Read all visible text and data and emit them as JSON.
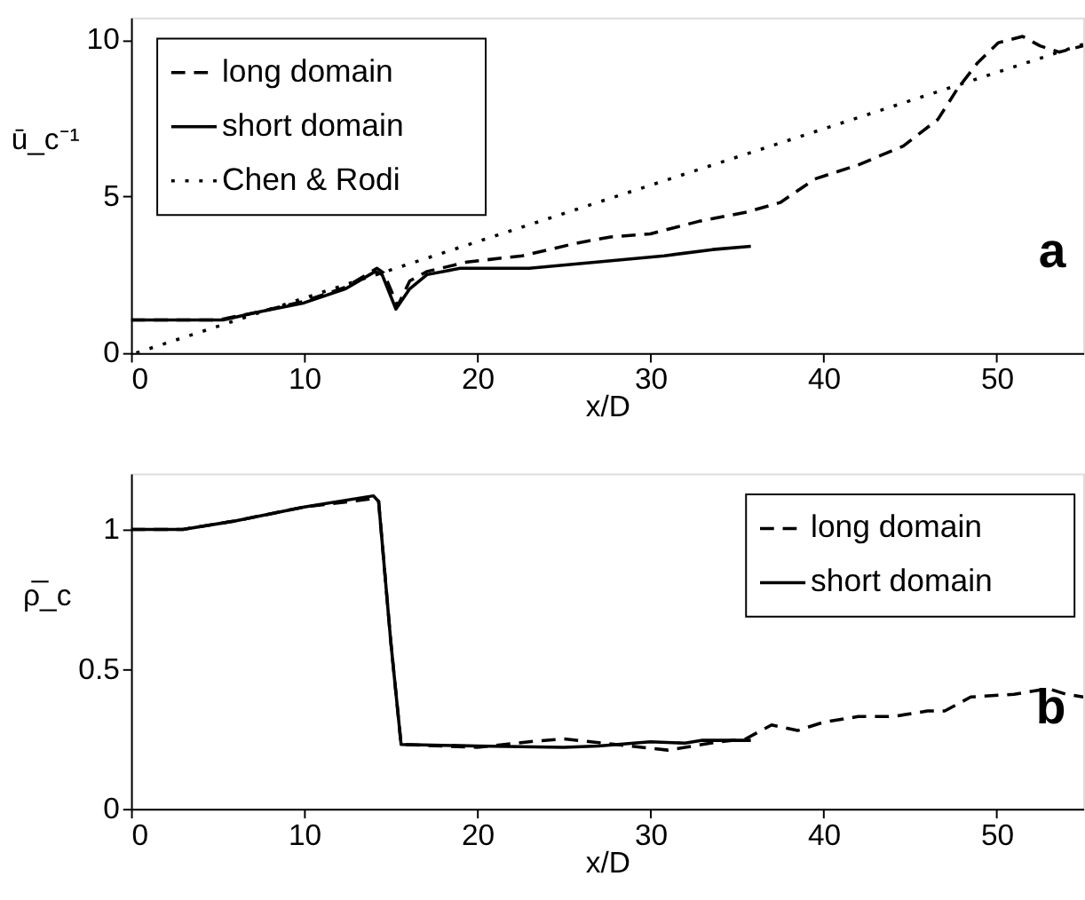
{
  "chart_data": [
    {
      "type": "line",
      "xlabel": "x/D",
      "ylabel": "ū_c⁻¹",
      "xlim": [
        0,
        55
      ],
      "ylim": [
        0,
        10.7
      ],
      "xticks": [
        0,
        10,
        20,
        30,
        40,
        50
      ],
      "yticks": [
        0,
        5,
        10
      ],
      "grid": false,
      "legend": "top left",
      "annotations": [
        "a"
      ],
      "series": [
        {
          "name": "long domain",
          "color": "#000000",
          "line_style": "dashed",
          "x": [
            0,
            5,
            7.3,
            10,
            12.4,
            14.2,
            14.6,
            15.4,
            16.1,
            17.1,
            19.4,
            22.6,
            25.7,
            27.7,
            30,
            32.8,
            35.6,
            37.5,
            39.5,
            42,
            44.6,
            46.6,
            47.7,
            48.9,
            50.1,
            51.5,
            52.5,
            53.6,
            55
          ],
          "values": [
            1.05,
            1.05,
            1.3,
            1.65,
            2.1,
            2.7,
            2.55,
            1.5,
            2.3,
            2.6,
            2.9,
            3.1,
            3.5,
            3.7,
            3.8,
            4.2,
            4.5,
            4.8,
            5.55,
            6.0,
            6.6,
            7.45,
            8.4,
            9.26,
            9.9,
            10.1,
            9.8,
            9.6,
            9.8
          ]
        },
        {
          "name": "short domain",
          "color": "#000000",
          "line_style": "solid",
          "x": [
            0,
            5.3,
            7.3,
            10,
            12.4,
            14.1,
            14.5,
            15.3,
            16.1,
            17.1,
            19,
            23,
            26.9,
            30.8,
            33.6,
            35.8
          ],
          "values": [
            1.05,
            1.05,
            1.3,
            1.6,
            2.05,
            2.6,
            2.5,
            1.4,
            2.05,
            2.5,
            2.7,
            2.7,
            2.9,
            3.1,
            3.3,
            3.4
          ]
        },
        {
          "name": "Chen & Rodi",
          "color": "#000000",
          "line_style": "dotted",
          "x": [
            0.3,
            10,
            20,
            30,
            40,
            50,
            55
          ],
          "values": [
            0,
            1.75,
            3.55,
            5.35,
            7.15,
            8.95,
            9.85
          ]
        }
      ]
    },
    {
      "type": "line",
      "xlabel": "x/D",
      "ylabel": "ρ̅_c",
      "xlim": [
        0,
        55
      ],
      "ylim": [
        0,
        1.2
      ],
      "xticks": [
        0,
        10,
        20,
        30,
        40,
        50
      ],
      "yticks": [
        0,
        0.5,
        1
      ],
      "grid": false,
      "legend": "top right",
      "annotations": [
        "b"
      ],
      "series": [
        {
          "name": "long domain",
          "color": "#000000",
          "line_style": "dashed",
          "x": [
            0,
            3,
            6,
            10,
            14,
            14.3,
            15,
            15.6,
            20,
            23,
            25,
            28,
            31,
            32,
            34,
            35.5,
            37,
            38.5,
            40,
            42,
            44,
            46,
            47,
            48.5,
            51,
            53,
            54,
            55
          ],
          "values": [
            1.0,
            1.0,
            1.03,
            1.08,
            1.11,
            1.1,
            0.6,
            0.23,
            0.22,
            0.24,
            0.25,
            0.23,
            0.21,
            0.22,
            0.24,
            0.25,
            0.3,
            0.28,
            0.31,
            0.33,
            0.33,
            0.35,
            0.35,
            0.4,
            0.41,
            0.43,
            0.41,
            0.4
          ]
        },
        {
          "name": "short domain",
          "color": "#000000",
          "line_style": "solid",
          "x": [
            0,
            3,
            6,
            10,
            14,
            14.3,
            15,
            15.6,
            20,
            25,
            27,
            30,
            32,
            33,
            35.8
          ],
          "values": [
            1.0,
            1.0,
            1.03,
            1.08,
            1.12,
            1.1,
            0.6,
            0.23,
            0.225,
            0.22,
            0.225,
            0.24,
            0.235,
            0.245,
            0.245
          ]
        }
      ]
    }
  ]
}
